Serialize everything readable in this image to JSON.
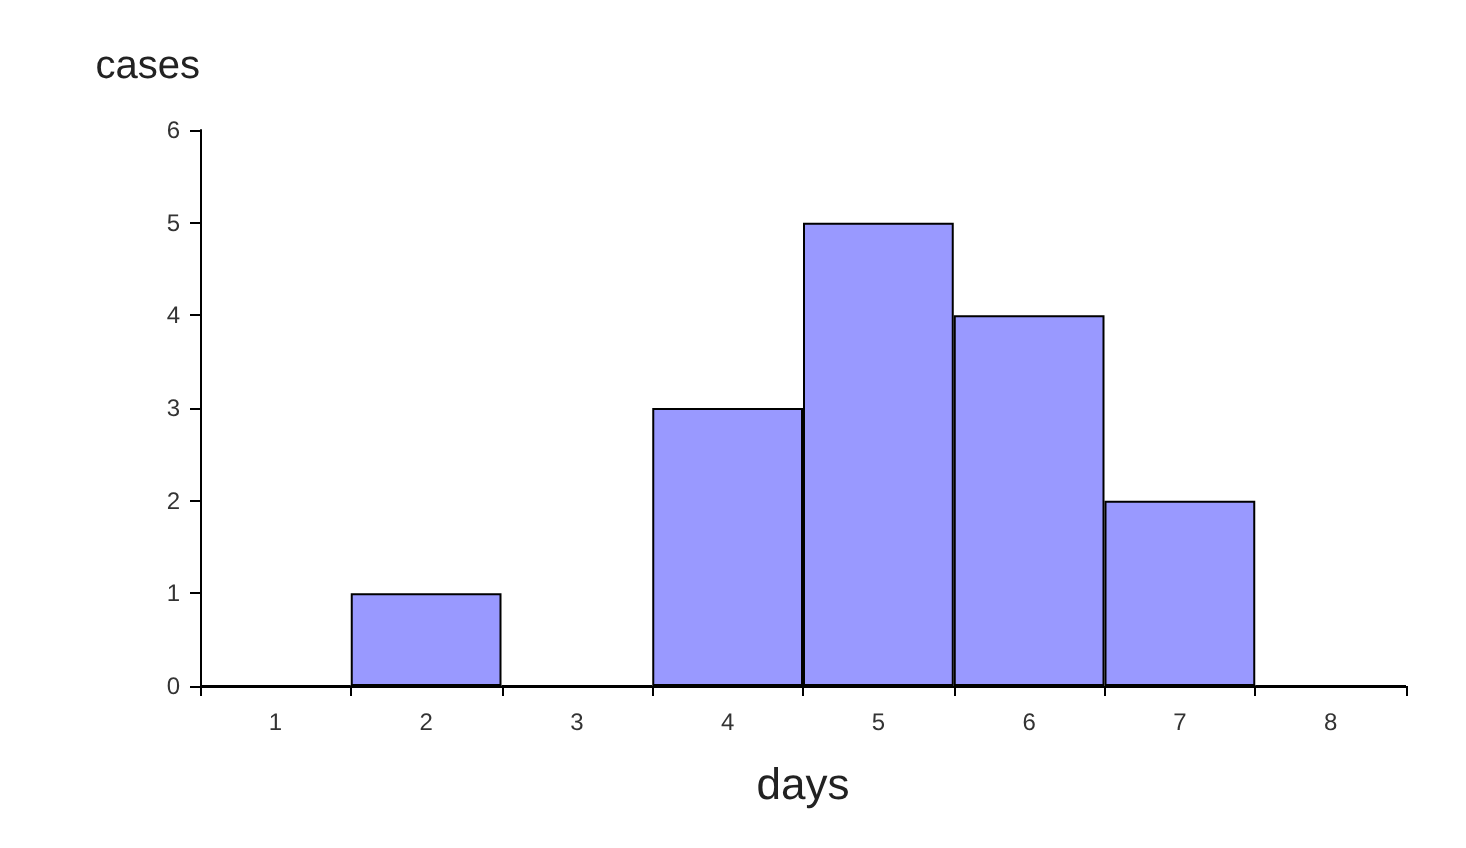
{
  "chart_data": {
    "type": "bar",
    "xlabel": "days",
    "ylabel": "cases",
    "categories": [
      "1",
      "2",
      "3",
      "4",
      "5",
      "6",
      "7",
      "8"
    ],
    "values": [
      0,
      1,
      0,
      3,
      5,
      4,
      2,
      0
    ],
    "color": "#9999ff",
    "ylim": [
      0,
      6
    ],
    "yticks": [
      0,
      1,
      2,
      3,
      4,
      5,
      6
    ],
    "grid": false
  }
}
